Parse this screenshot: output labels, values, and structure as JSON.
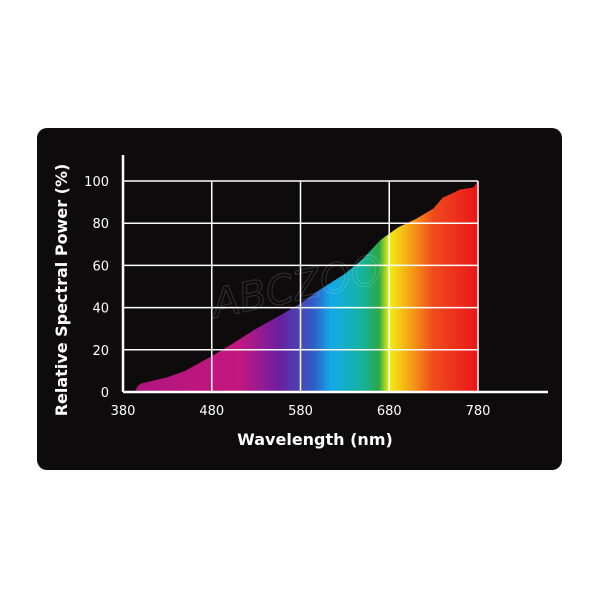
{
  "chart_data": {
    "type": "area",
    "xlabel": "Wavelength (nm)",
    "ylabel": "Relative Spectral Power (%)",
    "xlim": [
      380,
      780
    ],
    "ylim": [
      0,
      100
    ],
    "xticks": [
      "380",
      "480",
      "580",
      "680",
      "780"
    ],
    "yticks": [
      "0",
      "20",
      "40",
      "60",
      "80",
      "100"
    ],
    "grid": true,
    "fill": "visible spectrum gradient",
    "spectrum_colors": [
      "#b0157e",
      "#c4177f",
      "#6a1fa0",
      "#2f5fc8",
      "#13a9e8",
      "#14b3a0",
      "#2aa845",
      "#f2ee12",
      "#f5a415",
      "#ef4a1c",
      "#e8161a"
    ],
    "watermark": "ABCZOO",
    "series": [
      {
        "x": [
          395,
          400,
          430,
          450,
          480,
          500,
          530,
          560,
          580,
          600,
          630,
          650,
          670,
          690,
          710,
          730,
          740,
          760,
          775,
          780
        ],
        "y": [
          2,
          4,
          7,
          10,
          17,
          22,
          30,
          37,
          42,
          48,
          56,
          63,
          72,
          78,
          82,
          87,
          92,
          96,
          97,
          100
        ]
      }
    ]
  }
}
